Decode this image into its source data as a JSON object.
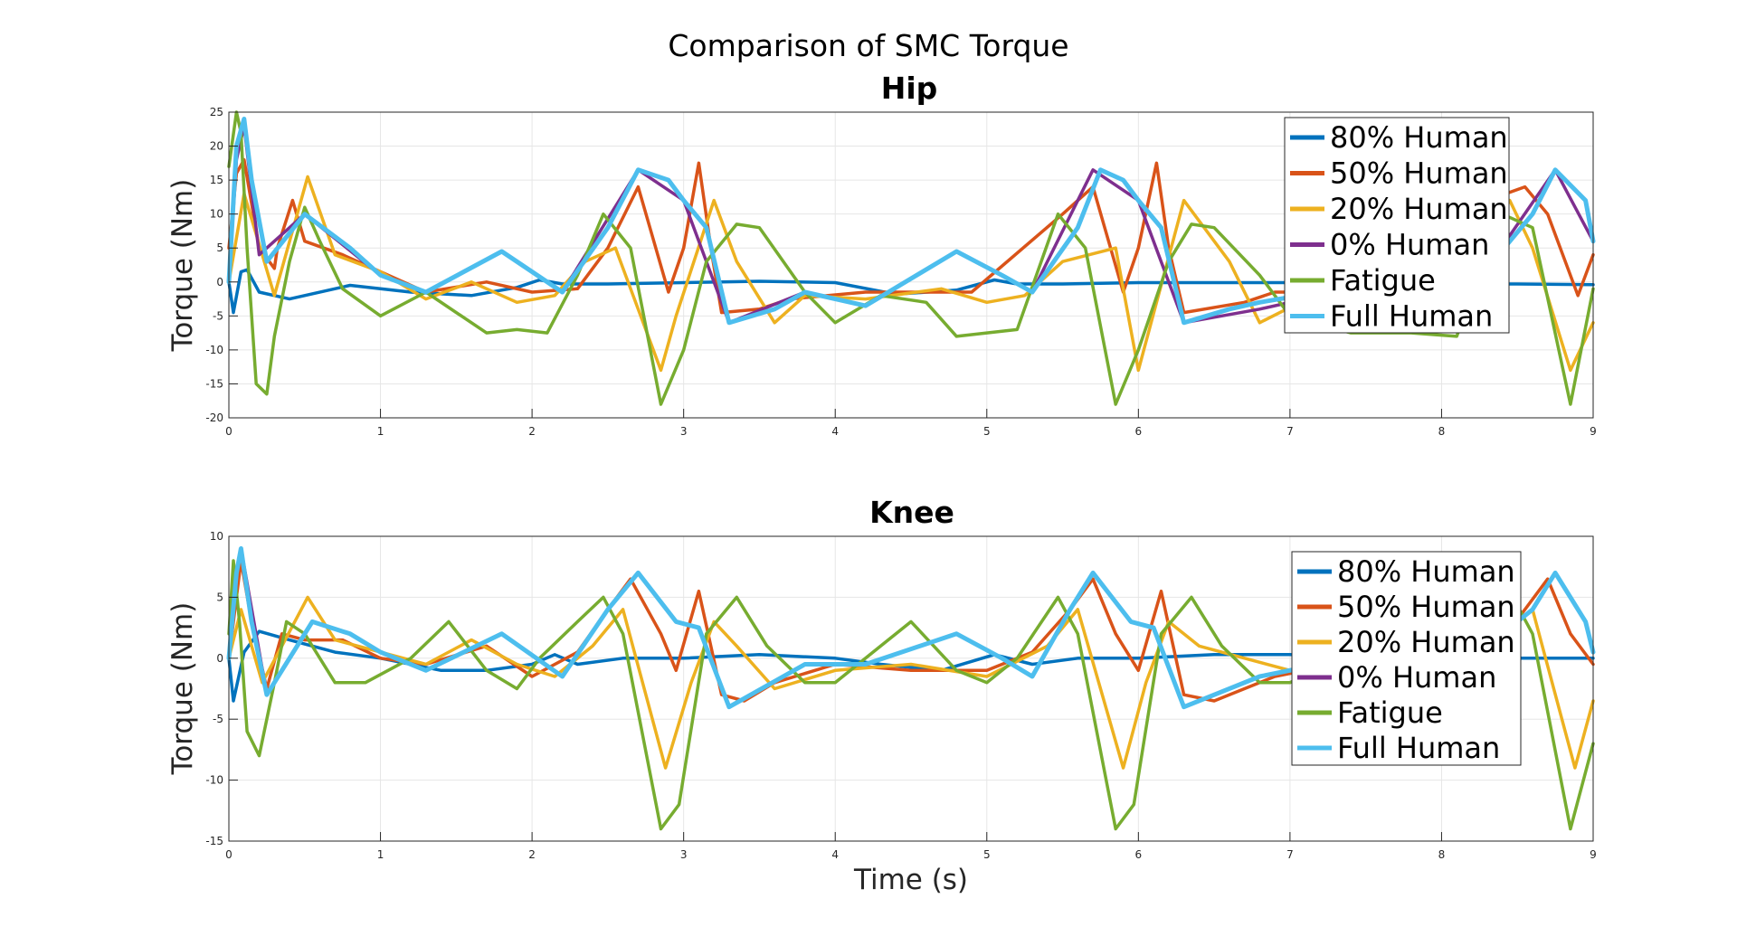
{
  "figure_title": "Comparison of SMC Torque",
  "colors": {
    "80% Human": "#0072BD",
    "50% Human": "#D95319",
    "20% Human": "#EDB120",
    "0% Human": "#7E2F8E",
    "Fatigue": "#77AC30",
    "Full Human": "#4DBEEE"
  },
  "chart_data": [
    {
      "type": "line",
      "title": "Hip",
      "xlabel": "",
      "ylabel": "Torque (Nm)",
      "xlim": [
        0,
        9
      ],
      "ylim": [
        -20,
        25
      ],
      "xticks": [
        0,
        1,
        2,
        3,
        4,
        5,
        6,
        7,
        8,
        9
      ],
      "yticks": [
        -20,
        -15,
        -10,
        -5,
        0,
        5,
        10,
        15,
        20,
        25
      ],
      "grid": true,
      "legend": "top-right",
      "series": [
        {
          "name": "80% Human",
          "x": [
            0,
            0.03,
            0.08,
            0.12,
            0.2,
            0.4,
            0.8,
            1.2,
            1.6,
            1.9,
            2.05,
            2.2,
            2.5,
            3.0,
            3.5,
            4.0,
            4.4,
            4.8,
            5.05,
            5.2,
            5.5,
            6.0,
            6.5,
            7.0,
            7.5,
            8.0,
            8.5,
            9.0
          ],
          "y": [
            0,
            -4.5,
            1.5,
            1.8,
            -1.5,
            -2.5,
            -0.5,
            -1.5,
            -2.0,
            -0.8,
            0.3,
            -0.3,
            -0.3,
            -0.1,
            0.1,
            -0.1,
            -1.8,
            -1.2,
            0.3,
            -0.3,
            -0.3,
            -0.1,
            -0.1,
            -0.1,
            -0.1,
            -0.3,
            -0.3,
            -0.4
          ]
        },
        {
          "name": "50% Human",
          "x": [
            0,
            0.05,
            0.1,
            0.2,
            0.3,
            0.32,
            0.42,
            0.5,
            0.75,
            1.0,
            1.3,
            1.7,
            2.0,
            2.3,
            2.5,
            2.7,
            2.9,
            3.0,
            3.1,
            3.18,
            3.25,
            3.5,
            3.7,
            4.2,
            4.9,
            5.5,
            5.7,
            5.9,
            6.0,
            6.12,
            6.2,
            6.3,
            6.7,
            6.9,
            7.5,
            7.9,
            8.1,
            8.3,
            8.55,
            8.7,
            8.9,
            9.0
          ],
          "y": [
            5,
            16,
            18,
            5,
            2,
            5,
            12,
            6,
            4,
            1.5,
            -1.5,
            0,
            -1.5,
            -1,
            5,
            14,
            -1.5,
            5,
            17.5,
            5,
            -4.5,
            -4,
            -2.5,
            -1.5,
            -1.5,
            10,
            14,
            -1.5,
            5,
            17.5,
            5,
            -4.5,
            -3,
            -1.5,
            -1.5,
            10,
            14,
            12,
            14,
            10,
            -2,
            4
          ]
        },
        {
          "name": "20% Human",
          "x": [
            0,
            0.1,
            0.3,
            0.52,
            0.7,
            1.0,
            1.3,
            1.6,
            1.9,
            2.15,
            2.35,
            2.55,
            2.85,
            2.95,
            3.2,
            3.35,
            3.6,
            3.8,
            4.2,
            4.7,
            5.0,
            5.25,
            5.5,
            5.85,
            6.0,
            6.3,
            6.6,
            6.8,
            7.2,
            7.6,
            7.9,
            8.2,
            8.45,
            8.6,
            8.85,
            9.0
          ],
          "y": [
            0,
            13,
            -2,
            15.5,
            4,
            1.5,
            -2.5,
            0,
            -3,
            -2,
            3,
            5,
            -13,
            -5,
            12,
            3,
            -6,
            -2,
            -2.5,
            -1,
            -3,
            -2,
            3,
            5,
            -13,
            12,
            3,
            -6,
            -1.5,
            -1.5,
            3,
            5,
            12,
            5,
            -13,
            -6
          ]
        },
        {
          "name": "0% Human",
          "x": [
            0,
            0.05,
            0.1,
            0.2,
            0.5,
            1.0,
            1.3,
            1.8,
            2.2,
            2.7,
            3.0,
            3.3,
            3.8,
            4.2,
            4.8,
            5.3,
            5.7,
            6.0,
            6.3,
            6.8,
            7.2,
            7.8,
            8.3,
            8.75,
            9.0
          ],
          "y": [
            0,
            18,
            23,
            4,
            10,
            1,
            -1.5,
            4.5,
            -1.5,
            16.5,
            12,
            -6,
            -1.5,
            -3.5,
            4.5,
            -1.5,
            16.5,
            12,
            -6,
            -4,
            -2,
            -1.5,
            2,
            16.5,
            6
          ]
        },
        {
          "name": "Fatigue",
          "x": [
            0,
            0.05,
            0.08,
            0.12,
            0.18,
            0.25,
            0.3,
            0.4,
            0.5,
            0.6,
            0.75,
            1.0,
            1.3,
            1.7,
            1.9,
            2.1,
            2.3,
            2.47,
            2.65,
            2.85,
            3.0,
            3.15,
            3.35,
            3.5,
            3.8,
            4.0,
            4.3,
            4.6,
            4.8,
            5.0,
            5.2,
            5.47,
            5.65,
            5.85,
            6.0,
            6.2,
            6.35,
            6.5,
            6.8,
            7.0,
            7.4,
            7.8,
            8.1,
            8.4,
            8.6,
            8.85,
            9.0
          ],
          "y": [
            17,
            25,
            22,
            5,
            -15,
            -16.5,
            -8,
            3,
            11,
            6,
            -1,
            -5,
            -1.5,
            -7.5,
            -7,
            -7.5,
            1,
            10,
            5,
            -18,
            -10,
            3,
            8.5,
            8,
            -1.5,
            -6,
            -2,
            -3,
            -8,
            -7.5,
            -7,
            10,
            5,
            -18,
            -10,
            3,
            8.5,
            8,
            1,
            -5,
            -7.5,
            -7.5,
            -8,
            10,
            8,
            -18,
            -1
          ]
        },
        {
          "name": "Full Human",
          "x": [
            0,
            0.05,
            0.1,
            0.15,
            0.25,
            0.5,
            0.8,
            1.0,
            1.3,
            1.8,
            2.2,
            2.5,
            2.7,
            2.9,
            3.0,
            3.15,
            3.3,
            3.6,
            3.8,
            4.2,
            4.8,
            5.1,
            5.3,
            5.6,
            5.75,
            5.9,
            6.0,
            6.15,
            6.3,
            6.6,
            6.8,
            7.2,
            7.8,
            8.3,
            8.6,
            8.75,
            8.95,
            9.0
          ],
          "y": [
            0,
            20,
            24,
            15,
            3,
            10,
            5,
            1,
            -1.5,
            4.5,
            -1.5,
            8,
            16.5,
            15,
            12,
            8,
            -6,
            -4,
            -1.5,
            -3.5,
            4.5,
            1,
            -1.5,
            8,
            16.5,
            15,
            12,
            8,
            -6,
            -4,
            -3,
            -1.5,
            -1,
            2,
            10,
            16.5,
            12,
            6
          ]
        }
      ]
    },
    {
      "type": "line",
      "title": "Knee",
      "xlabel": "Time (s)",
      "ylabel": "Torque (Nm)",
      "xlim": [
        0,
        9
      ],
      "ylim": [
        -15,
        10
      ],
      "xticks": [
        0,
        1,
        2,
        3,
        4,
        5,
        6,
        7,
        8,
        9
      ],
      "yticks": [
        -15,
        -10,
        -5,
        0,
        5,
        10
      ],
      "grid": true,
      "legend": "top-right",
      "series": [
        {
          "name": "80% Human",
          "x": [
            0,
            0.03,
            0.1,
            0.2,
            0.4,
            0.7,
            1.0,
            1.4,
            1.7,
            2.0,
            2.15,
            2.3,
            2.6,
            3.0,
            3.5,
            4.0,
            4.3,
            4.7,
            5.05,
            5.3,
            5.6,
            6.0,
            6.5,
            7.0,
            7.5,
            8.0,
            8.5,
            9.0
          ],
          "y": [
            0,
            -3.5,
            0.5,
            2.2,
            1.5,
            0.5,
            0,
            -1,
            -1,
            -0.5,
            0.3,
            -0.5,
            0,
            0,
            0.3,
            0,
            -0.5,
            -1,
            0.3,
            -0.5,
            0,
            0,
            0.3,
            0.3,
            0,
            0,
            0,
            0
          ]
        },
        {
          "name": "50% Human",
          "x": [
            0,
            0.08,
            0.15,
            0.25,
            0.35,
            0.5,
            0.75,
            1.0,
            1.3,
            1.7,
            2.0,
            2.3,
            2.5,
            2.65,
            2.85,
            2.95,
            3.1,
            3.25,
            3.4,
            3.6,
            4.0,
            4.5,
            5.0,
            5.3,
            5.55,
            5.7,
            5.85,
            6.0,
            6.15,
            6.3,
            6.5,
            6.9,
            7.3,
            7.8,
            8.3,
            8.55,
            8.7,
            8.85,
            9.0
          ],
          "y": [
            0,
            8,
            3,
            -2.5,
            2,
            1.5,
            1.5,
            0,
            -0.5,
            1,
            -1.5,
            0.5,
            4,
            6.5,
            2,
            -1,
            5.5,
            -3,
            -3.5,
            -2,
            -0.5,
            -1,
            -1,
            0.5,
            4,
            6.5,
            2,
            -1,
            5.5,
            -3,
            -3.5,
            -1.5,
            -0.5,
            -0.5,
            0,
            4,
            6.5,
            2,
            -0.5
          ]
        },
        {
          "name": "20% Human",
          "x": [
            0,
            0.08,
            0.22,
            0.35,
            0.52,
            0.7,
            1.0,
            1.3,
            1.6,
            1.9,
            2.15,
            2.4,
            2.6,
            2.88,
            3.05,
            3.2,
            3.35,
            3.6,
            4.0,
            4.5,
            5.0,
            5.4,
            5.6,
            5.9,
            6.05,
            6.2,
            6.4,
            7.0,
            7.5,
            8.0,
            8.3,
            8.6,
            8.88,
            9.0
          ],
          "y": [
            0,
            4,
            -2,
            1,
            5,
            1.5,
            0.5,
            -0.5,
            1.5,
            -0.5,
            -1.5,
            1,
            4,
            -9,
            -2,
            3,
            1,
            -2.5,
            -1,
            -0.5,
            -1.5,
            1,
            4,
            -9,
            -2,
            3,
            1,
            -1,
            -1,
            -0.5,
            1,
            4,
            -9,
            -3.5
          ]
        },
        {
          "name": "0% Human",
          "x": [
            0,
            0.05,
            0.08,
            0.25,
            0.55,
            0.8,
            1.0,
            1.3,
            1.8,
            2.2,
            2.5,
            2.7,
            2.95,
            3.1,
            3.3,
            3.8,
            4.2,
            4.8,
            5.1,
            5.3,
            5.55,
            5.7,
            5.95,
            6.1,
            6.3,
            6.8,
            7.2,
            7.8,
            8.3,
            8.6,
            8.75,
            8.95,
            9.0
          ],
          "y": [
            0,
            7,
            9,
            -3,
            3,
            2,
            0.5,
            -1,
            2,
            -1.5,
            4,
            7,
            3,
            2.5,
            -4,
            -0.5,
            -0.5,
            2,
            0,
            -1.5,
            4,
            7,
            3,
            2.5,
            -4,
            -1.5,
            -0.5,
            -0.5,
            1,
            4,
            7,
            3,
            0.5
          ]
        },
        {
          "name": "Fatigue",
          "x": [
            0,
            0.03,
            0.07,
            0.12,
            0.2,
            0.3,
            0.38,
            0.5,
            0.7,
            0.9,
            1.2,
            1.45,
            1.7,
            1.9,
            2.05,
            2.3,
            2.47,
            2.6,
            2.85,
            2.97,
            3.15,
            3.35,
            3.55,
            3.8,
            4.0,
            4.3,
            4.5,
            4.8,
            5.0,
            5.2,
            5.47,
            5.6,
            5.85,
            5.97,
            6.15,
            6.35,
            6.55,
            6.8,
            7.0,
            7.3,
            7.6,
            7.8,
            8.1,
            8.47,
            8.6,
            8.85,
            9.0
          ],
          "y": [
            2,
            8,
            3,
            -6,
            -8,
            -2,
            3,
            2,
            -2,
            -2,
            0,
            3,
            -1,
            -2.5,
            0,
            3,
            5,
            2,
            -14,
            -12,
            2,
            5,
            1,
            -2,
            -2,
            1,
            3,
            -1,
            -2,
            0,
            5,
            2,
            -14,
            -12,
            2,
            5,
            1,
            -2,
            -2,
            0,
            3,
            -1,
            -2,
            5,
            2,
            -14,
            -7
          ]
        },
        {
          "name": "Full Human",
          "x": [
            0,
            0.05,
            0.08,
            0.15,
            0.25,
            0.55,
            0.8,
            1.0,
            1.3,
            1.8,
            2.2,
            2.5,
            2.7,
            2.95,
            3.1,
            3.3,
            3.8,
            4.2,
            4.8,
            5.1,
            5.3,
            5.55,
            5.7,
            5.95,
            6.1,
            6.3,
            6.8,
            7.2,
            7.8,
            8.3,
            8.6,
            8.75,
            8.95,
            9.0
          ],
          "y": [
            0,
            7,
            9,
            3,
            -3,
            3,
            2,
            0.5,
            -1,
            2,
            -1.5,
            4,
            7,
            3,
            2.5,
            -4,
            -0.5,
            -0.5,
            2,
            0,
            -1.5,
            4,
            7,
            3,
            2.5,
            -4,
            -1.5,
            -0.5,
            -0.5,
            1,
            4,
            7,
            3,
            0.5
          ]
        }
      ]
    }
  ]
}
